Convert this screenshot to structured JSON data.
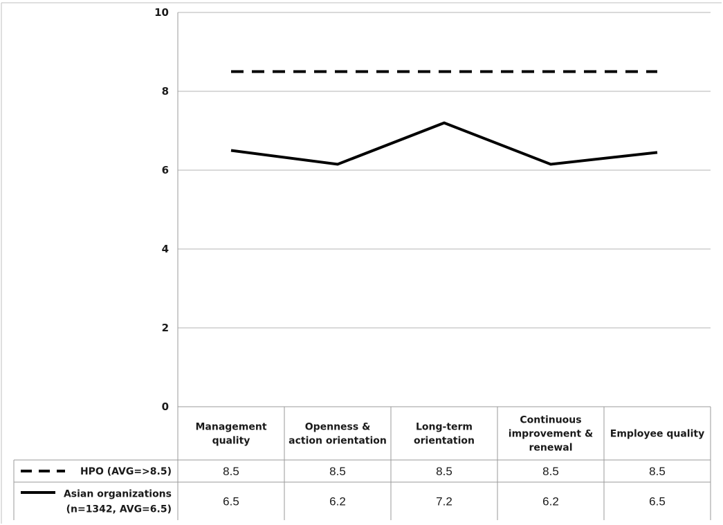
{
  "chart_data": {
    "type": "line",
    "title": "",
    "xlabel": "",
    "ylabel": "",
    "ylim": [
      0,
      10
    ],
    "yticks": [
      "0",
      "2",
      "4",
      "6",
      "8",
      "10"
    ],
    "grid": true,
    "categories": [
      [
        "Management",
        "quality"
      ],
      [
        "Openness &",
        "action orientation"
      ],
      [
        "Long-term",
        "orientation"
      ],
      [
        "Continuous",
        "improvement &",
        "renewal"
      ],
      [
        "Employee quality"
      ]
    ],
    "series": [
      {
        "name": "HPO (AVG=>8.5)",
        "legend_lines": [
          "HPO (AVG=>8.5)"
        ],
        "style": "dashed",
        "color": "#000000",
        "values": [
          8.5,
          8.5,
          8.5,
          8.5,
          8.5
        ],
        "labels": [
          "8.5",
          "8.5",
          "8.5",
          "8.5",
          "8.5"
        ]
      },
      {
        "name": "Asian organizations (n=1342, AVG=6.5)",
        "legend_lines": [
          "Asian organizations",
          "(n=1342, AVG=6.5)"
        ],
        "style": "solid",
        "color": "#000000",
        "values": [
          6.5,
          6.15,
          7.2,
          6.15,
          6.45
        ],
        "labels": [
          "6.5",
          "6.2",
          "7.2",
          "6.2",
          "6.5"
        ]
      }
    ]
  }
}
